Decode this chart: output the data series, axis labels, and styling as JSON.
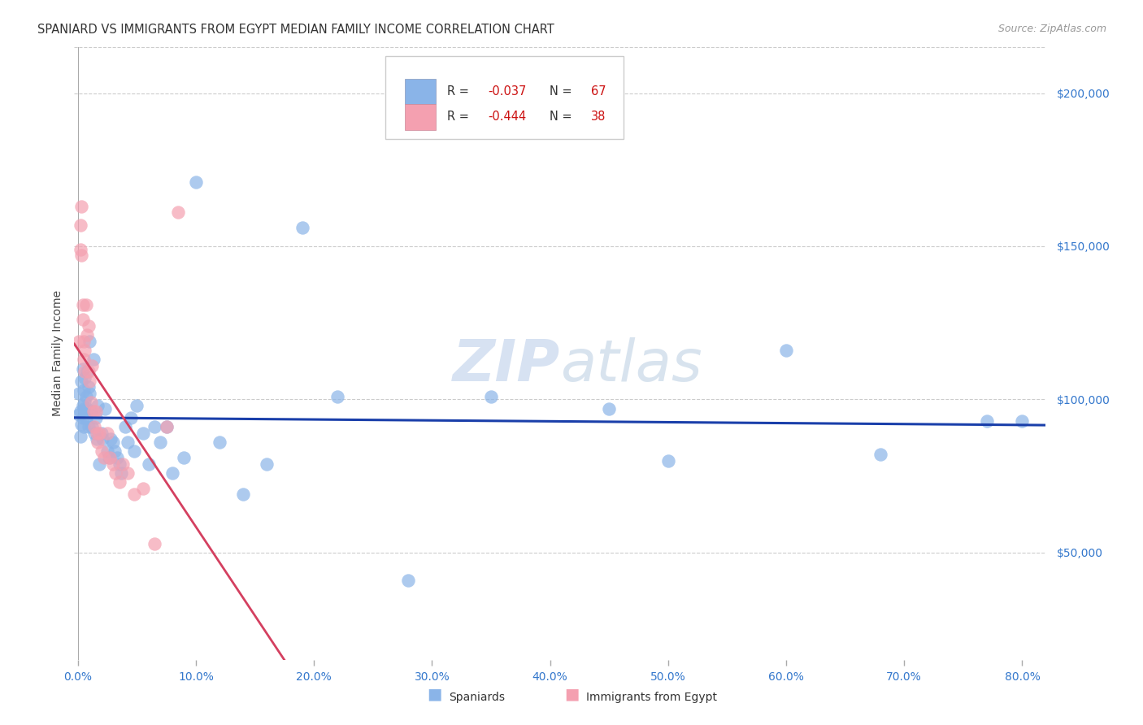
{
  "title": "SPANIARD VS IMMIGRANTS FROM EGYPT MEDIAN FAMILY INCOME CORRELATION CHART",
  "source": "Source: ZipAtlas.com",
  "ylabel": "Median Family Income",
  "ytick_values": [
    50000,
    100000,
    150000,
    200000
  ],
  "ytick_labels": [
    "$50,000",
    "$100,000",
    "$150,000",
    "$200,000"
  ],
  "ylim": [
    15000,
    215000
  ],
  "xlim": [
    -0.003,
    0.82
  ],
  "xticks": [
    0.0,
    0.1,
    0.2,
    0.3,
    0.4,
    0.5,
    0.6,
    0.7,
    0.8
  ],
  "xtick_labels": [
    "0.0%",
    "10.0%",
    "20.0%",
    "30.0%",
    "40.0%",
    "50.0%",
    "60.0%",
    "70.0%",
    "80.0%"
  ],
  "blue_color": "#8ab4e8",
  "pink_color": "#f4a0b0",
  "line_blue": "#1a3faa",
  "line_pink": "#d44060",
  "line_dashed_color": "#e8c0c8",
  "grid_color": "#cccccc",
  "title_color": "#333333",
  "source_color": "#999999",
  "tick_color": "#3377cc",
  "legend_R1": "-0.037",
  "legend_N1": "67",
  "legend_R2": "-0.444",
  "legend_N2": "38",
  "legend_label1": "Spaniards",
  "legend_label2": "Immigrants from Egypt",
  "spaniards_x": [
    0.001,
    0.001,
    0.002,
    0.002,
    0.003,
    0.003,
    0.004,
    0.004,
    0.004,
    0.005,
    0.005,
    0.005,
    0.006,
    0.006,
    0.007,
    0.007,
    0.008,
    0.008,
    0.009,
    0.009,
    0.01,
    0.01,
    0.011,
    0.012,
    0.013,
    0.014,
    0.015,
    0.016,
    0.017,
    0.018,
    0.02,
    0.021,
    0.023,
    0.025,
    0.026,
    0.028,
    0.03,
    0.031,
    0.033,
    0.035,
    0.037,
    0.04,
    0.042,
    0.045,
    0.048,
    0.05,
    0.055,
    0.06,
    0.065,
    0.07,
    0.075,
    0.08,
    0.09,
    0.1,
    0.12,
    0.14,
    0.16,
    0.19,
    0.22,
    0.28,
    0.35,
    0.45,
    0.5,
    0.6,
    0.68,
    0.77,
    0.8
  ],
  "spaniards_y": [
    95000,
    102000,
    88000,
    96000,
    92000,
    106000,
    98000,
    110000,
    94000,
    103000,
    97000,
    91000,
    107000,
    99000,
    101000,
    94000,
    109000,
    97000,
    104000,
    91000,
    119000,
    102000,
    96000,
    91000,
    113000,
    89000,
    94000,
    87000,
    98000,
    79000,
    89000,
    87000,
    97000,
    83000,
    81000,
    87000,
    86000,
    83000,
    81000,
    79000,
    76000,
    91000,
    86000,
    94000,
    83000,
    98000,
    89000,
    79000,
    91000,
    86000,
    91000,
    76000,
    81000,
    171000,
    86000,
    69000,
    79000,
    156000,
    101000,
    41000,
    101000,
    97000,
    80000,
    116000,
    82000,
    93000,
    93000
  ],
  "egypt_x": [
    0.001,
    0.002,
    0.002,
    0.003,
    0.003,
    0.004,
    0.004,
    0.005,
    0.005,
    0.006,
    0.006,
    0.007,
    0.008,
    0.009,
    0.009,
    0.01,
    0.011,
    0.012,
    0.013,
    0.014,
    0.015,
    0.016,
    0.017,
    0.018,
    0.02,
    0.022,
    0.025,
    0.027,
    0.03,
    0.032,
    0.035,
    0.038,
    0.042,
    0.048,
    0.055,
    0.065,
    0.075,
    0.085
  ],
  "egypt_y": [
    119000,
    157000,
    149000,
    163000,
    147000,
    131000,
    126000,
    119000,
    113000,
    116000,
    109000,
    131000,
    121000,
    124000,
    109000,
    106000,
    99000,
    111000,
    96000,
    91000,
    96000,
    89000,
    86000,
    89000,
    83000,
    81000,
    89000,
    81000,
    79000,
    76000,
    73000,
    79000,
    76000,
    69000,
    71000,
    53000,
    91000,
    161000
  ]
}
